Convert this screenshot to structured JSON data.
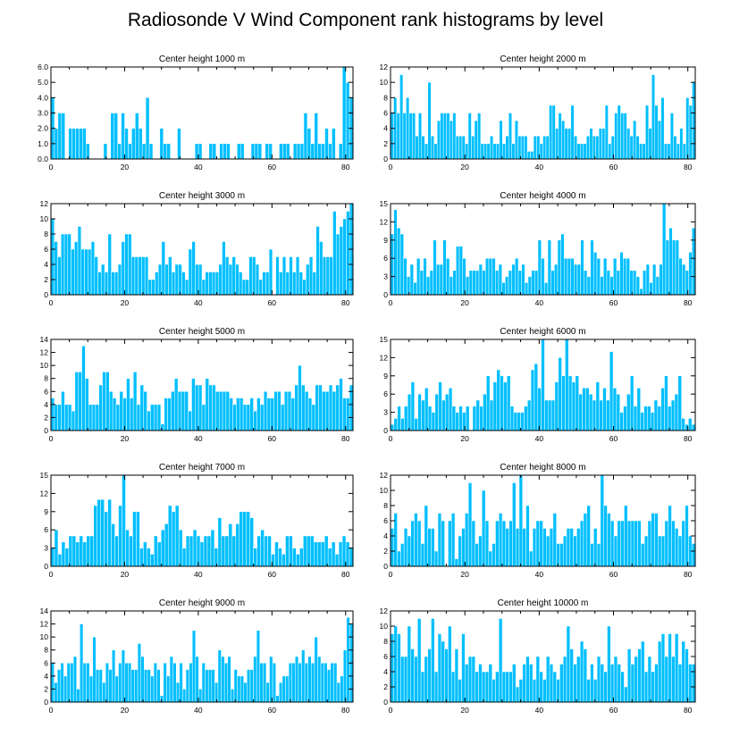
{
  "figure": {
    "title": "Radiosonde V Wind Component rank histograms by level",
    "bar_color": "#00bfff"
  },
  "chart_data": [
    {
      "type": "bar",
      "title": "Center height 1000 m",
      "xlim": [
        0,
        82
      ],
      "ylim": [
        0,
        6
      ],
      "xticks": [
        0,
        20,
        40,
        60,
        80
      ],
      "yticks": [
        0,
        1,
        2,
        3,
        4,
        5,
        6
      ],
      "ytick_labels": [
        "0.0",
        "1.0",
        "2.0",
        "3.0",
        "4.0",
        "5.0",
        "6.0"
      ],
      "values": [
        4,
        2,
        3,
        3,
        0,
        2,
        2,
        2,
        2,
        2,
        1,
        0,
        0,
        0,
        0,
        1,
        0,
        3,
        3,
        1,
        3,
        2,
        1,
        2,
        3,
        2,
        1,
        4,
        1,
        0,
        0,
        2,
        1,
        1,
        0,
        0,
        2,
        0,
        0,
        0,
        0,
        1,
        1,
        0,
        0,
        1,
        1,
        0,
        1,
        1,
        1,
        0,
        0,
        1,
        1,
        0,
        0,
        1,
        1,
        1,
        0,
        1,
        1,
        0,
        0,
        1,
        1,
        1,
        0,
        1,
        1,
        1,
        3,
        2,
        1,
        3,
        1,
        1,
        2,
        1,
        2,
        0,
        1,
        6,
        5,
        4
      ]
    },
    {
      "type": "bar",
      "title": "Center height 2000 m",
      "xlim": [
        0,
        82
      ],
      "ylim": [
        0,
        12
      ],
      "xticks": [
        0,
        20,
        40,
        60,
        80
      ],
      "yticks": [
        0,
        2,
        4,
        6,
        8,
        10,
        12
      ],
      "ytick_labels": [
        "0",
        "2",
        "4",
        "6",
        "8",
        "10",
        "12"
      ],
      "values": [
        6,
        8,
        6,
        11,
        6,
        8,
        6,
        6,
        3,
        6,
        3,
        2,
        10,
        3,
        2,
        5,
        6,
        6,
        6,
        5,
        6,
        3,
        3,
        3,
        2,
        6,
        3,
        5,
        6,
        2,
        2,
        2,
        3,
        2,
        2,
        5,
        2,
        3,
        6,
        2,
        5,
        3,
        3,
        3,
        1,
        1,
        3,
        3,
        2,
        3,
        3,
        7,
        7,
        4,
        6,
        5,
        4,
        4,
        7,
        3,
        2,
        2,
        2,
        3,
        4,
        3,
        3,
        4,
        4,
        7,
        2,
        3,
        6,
        7,
        6,
        6,
        4,
        3,
        5,
        3,
        2,
        2,
        7,
        4,
        11,
        7,
        5,
        8,
        2,
        2,
        6,
        3,
        2,
        4,
        2,
        8,
        7,
        10
      ]
    },
    {
      "type": "bar",
      "title": "Center height 3000 m",
      "xlim": [
        0,
        82
      ],
      "ylim": [
        0,
        12
      ],
      "xticks": [
        0,
        20,
        40,
        60,
        80
      ],
      "yticks": [
        0,
        2,
        4,
        6,
        8,
        10,
        12
      ],
      "ytick_labels": [
        "0",
        "2",
        "4",
        "6",
        "8",
        "10",
        "12"
      ],
      "values": [
        10,
        7,
        5,
        8,
        8,
        8,
        6,
        7,
        9,
        6,
        6,
        6,
        7,
        5,
        3,
        4,
        3,
        8,
        3,
        3,
        4,
        7,
        8,
        8,
        5,
        5,
        5,
        5,
        5,
        2,
        2,
        3,
        4,
        7,
        4,
        5,
        3,
        4,
        4,
        3,
        2,
        6,
        7,
        4,
        4,
        2,
        3,
        3,
        3,
        3,
        4,
        7,
        5,
        4,
        5,
        4,
        3,
        2,
        2,
        5,
        5,
        4,
        2,
        3,
        3,
        6,
        0,
        5,
        3,
        5,
        3,
        5,
        3,
        5,
        3,
        2,
        4,
        5,
        3,
        9,
        7,
        5,
        5,
        5,
        11,
        8,
        9,
        10,
        11,
        12
      ]
    },
    {
      "type": "bar",
      "title": "Center height 4000 m",
      "xlim": [
        0,
        82
      ],
      "ylim": [
        0,
        15
      ],
      "xticks": [
        0,
        20,
        40,
        60,
        80
      ],
      "yticks": [
        0,
        3,
        6,
        9,
        12,
        15
      ],
      "ytick_labels": [
        "0",
        "3",
        "6",
        "9",
        "12",
        "15"
      ],
      "values": [
        10,
        14,
        11,
        10,
        6,
        3,
        5,
        2,
        6,
        4,
        6,
        3,
        4,
        9,
        5,
        5,
        9,
        6,
        3,
        4,
        8,
        8,
        6,
        3,
        4,
        4,
        4,
        5,
        4,
        6,
        6,
        6,
        4,
        5,
        2,
        3,
        4,
        5,
        6,
        4,
        5,
        2,
        3,
        4,
        4,
        9,
        6,
        2,
        9,
        4,
        5,
        9,
        10,
        6,
        6,
        6,
        5,
        5,
        9,
        4,
        3,
        9,
        7,
        6,
        3,
        6,
        4,
        3,
        6,
        4,
        7,
        6,
        6,
        4,
        4,
        3,
        1,
        4,
        5,
        2,
        5,
        3,
        5,
        15,
        9,
        11,
        9,
        9,
        6,
        5,
        4,
        7,
        11
      ]
    },
    {
      "type": "bar",
      "title": "Center height 5000 m",
      "xlim": [
        0,
        82
      ],
      "ylim": [
        0,
        14
      ],
      "xticks": [
        0,
        20,
        40,
        60,
        80
      ],
      "yticks": [
        0,
        2,
        4,
        6,
        8,
        10,
        12,
        14
      ],
      "ytick_labels": [
        "0",
        "2",
        "4",
        "6",
        "8",
        "10",
        "12",
        "14"
      ],
      "values": [
        5,
        4,
        4,
        6,
        4,
        4,
        3,
        9,
        9,
        13,
        8,
        4,
        4,
        4,
        7,
        9,
        9,
        6,
        5,
        4,
        6,
        5,
        8,
        5,
        9,
        4,
        7,
        6,
        3,
        4,
        4,
        4,
        1,
        5,
        5,
        6,
        8,
        6,
        6,
        6,
        3,
        8,
        7,
        7,
        4,
        8,
        7,
        7,
        6,
        6,
        6,
        6,
        5,
        4,
        5,
        5,
        4,
        4,
        5,
        3,
        5,
        4,
        6,
        5,
        5,
        6,
        6,
        4,
        6,
        6,
        5,
        7,
        10,
        7,
        6,
        5,
        4,
        7,
        7,
        6,
        6,
        7,
        6,
        7,
        8,
        5,
        5,
        7
      ]
    },
    {
      "type": "bar",
      "title": "Center height 6000 m",
      "xlim": [
        0,
        82
      ],
      "ylim": [
        0,
        15
      ],
      "xticks": [
        0,
        20,
        40,
        60,
        80
      ],
      "yticks": [
        0,
        3,
        6,
        9,
        12,
        15
      ],
      "ytick_labels": [
        "0",
        "3",
        "6",
        "9",
        "12",
        "15"
      ],
      "values": [
        1,
        2,
        4,
        2,
        4,
        6,
        8,
        2,
        6,
        5,
        7,
        4,
        3,
        6,
        8,
        5,
        6,
        7,
        4,
        3,
        4,
        3,
        4,
        0,
        4,
        5,
        4,
        6,
        9,
        5,
        8,
        10,
        9,
        8,
        9,
        4,
        3,
        3,
        3,
        4,
        5,
        10,
        11,
        7,
        15,
        5,
        5,
        5,
        8,
        12,
        9,
        15,
        9,
        8,
        9,
        6,
        7,
        7,
        6,
        5,
        8,
        5,
        7,
        5,
        13,
        7,
        6,
        3,
        4,
        6,
        9,
        4,
        7,
        3,
        4,
        4,
        3,
        5,
        4,
        7,
        9,
        4,
        5,
        6,
        9,
        2,
        1,
        2,
        1
      ]
    },
    {
      "type": "bar",
      "title": "Center height 7000 m",
      "xlim": [
        0,
        82
      ],
      "ylim": [
        0,
        15
      ],
      "xticks": [
        0,
        20,
        40,
        60,
        80
      ],
      "yticks": [
        0,
        3,
        6,
        9,
        12,
        15
      ],
      "ytick_labels": [
        "0",
        "3",
        "6",
        "9",
        "12",
        "15"
      ],
      "values": [
        3,
        6,
        2,
        4,
        3,
        5,
        5,
        4,
        5,
        4,
        5,
        5,
        10,
        11,
        11,
        9,
        11,
        7,
        5,
        10,
        15,
        6,
        5,
        9,
        9,
        3,
        4,
        3,
        2,
        5,
        4,
        6,
        7,
        10,
        9,
        10,
        6,
        3,
        5,
        5,
        6,
        5,
        4,
        5,
        5,
        6,
        3,
        8,
        5,
        5,
        7,
        5,
        7,
        9,
        9,
        9,
        8,
        3,
        5,
        6,
        5,
        5,
        2,
        4,
        3,
        2,
        5,
        5,
        3,
        2,
        3,
        5,
        5,
        5,
        4,
        4,
        4,
        5,
        3,
        4,
        2,
        4,
        5,
        4,
        3
      ]
    },
    {
      "type": "bar",
      "title": "Center height 8000 m",
      "xlim": [
        0,
        82
      ],
      "ylim": [
        0,
        12
      ],
      "xticks": [
        0,
        20,
        40,
        60,
        80
      ],
      "yticks": [
        0,
        2,
        4,
        6,
        8,
        10,
        12
      ],
      "ytick_labels": [
        "0",
        "2",
        "4",
        "6",
        "8",
        "10",
        "12"
      ],
      "values": [
        5,
        7,
        2,
        3,
        5,
        4,
        6,
        7,
        6,
        3,
        8,
        5,
        5,
        2,
        7,
        6,
        0,
        6,
        7,
        1,
        4,
        5,
        7,
        11,
        6,
        3,
        4,
        10,
        6,
        2,
        3,
        6,
        7,
        6,
        5,
        6,
        11,
        5,
        12,
        5,
        8,
        2,
        5,
        6,
        6,
        5,
        4,
        5,
        7,
        3,
        3,
        4,
        5,
        5,
        4,
        5,
        6,
        7,
        8,
        3,
        5,
        3,
        12,
        8,
        7,
        6,
        4,
        6,
        6,
        8,
        6,
        6,
        6,
        6,
        3,
        4,
        6,
        7,
        7,
        4,
        4,
        6,
        8,
        6,
        5,
        4,
        6,
        8,
        4,
        3
      ]
    },
    {
      "type": "bar",
      "title": "Center height 9000 m",
      "xlim": [
        0,
        82
      ],
      "ylim": [
        0,
        14
      ],
      "xticks": [
        0,
        20,
        40,
        60,
        80
      ],
      "yticks": [
        0,
        2,
        4,
        6,
        8,
        10,
        12,
        14
      ],
      "ytick_labels": [
        "0",
        "2",
        "4",
        "6",
        "8",
        "10",
        "12",
        "14"
      ],
      "values": [
        6,
        3,
        5,
        6,
        4,
        6,
        6,
        7,
        2,
        12,
        6,
        6,
        4,
        10,
        5,
        5,
        3,
        6,
        5,
        8,
        4,
        6,
        8,
        6,
        6,
        5,
        5,
        9,
        7,
        5,
        5,
        4,
        6,
        5,
        1,
        6,
        4,
        7,
        6,
        3,
        6,
        2,
        5,
        6,
        11,
        7,
        2,
        6,
        5,
        5,
        5,
        3,
        8,
        7,
        6,
        7,
        2,
        5,
        4,
        4,
        3,
        5,
        5,
        7,
        11,
        6,
        6,
        3,
        7,
        6,
        1,
        3,
        4,
        4,
        6,
        6,
        7,
        6,
        8,
        6,
        7,
        6,
        10,
        7,
        6,
        6,
        5,
        6,
        6,
        3,
        4,
        8,
        13,
        12
      ]
    },
    {
      "type": "bar",
      "title": "Center height 10000 m",
      "xlim": [
        0,
        82
      ],
      "ylim": [
        0,
        12
      ],
      "xticks": [
        0,
        20,
        40,
        60,
        80
      ],
      "yticks": [
        0,
        2,
        4,
        6,
        8,
        10,
        12
      ],
      "ytick_labels": [
        "0",
        "2",
        "4",
        "6",
        "8",
        "10",
        "12"
      ],
      "values": [
        9,
        10,
        9,
        6,
        6,
        10,
        7,
        6,
        11,
        4,
        6,
        7,
        11,
        4,
        9,
        8,
        7,
        10,
        4,
        7,
        3,
        9,
        5,
        6,
        6,
        4,
        5,
        4,
        4,
        5,
        3,
        4,
        11,
        4,
        4,
        4,
        5,
        2,
        3,
        5,
        6,
        5,
        3,
        6,
        4,
        3,
        6,
        5,
        4,
        3,
        5,
        6,
        10,
        7,
        5,
        6,
        8,
        7,
        3,
        5,
        3,
        6,
        5,
        4,
        10,
        5,
        6,
        5,
        4,
        2,
        7,
        5,
        6,
        7,
        8,
        4,
        6,
        4,
        5,
        8,
        9,
        6,
        9,
        6,
        9,
        5,
        8,
        7,
        5,
        5
      ]
    }
  ]
}
